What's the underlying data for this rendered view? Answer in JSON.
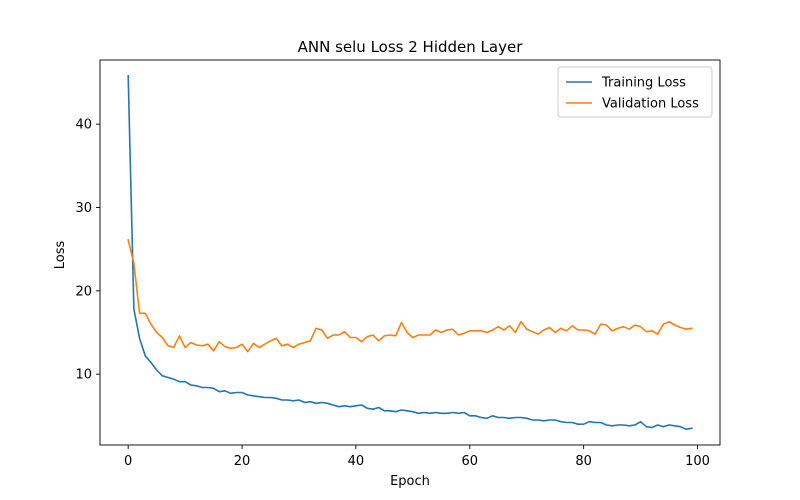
{
  "chart_data": {
    "type": "line",
    "title": "ANN selu Loss 2 Hidden Layer",
    "xlabel": "Epoch",
    "ylabel": "Loss",
    "xlim": [
      -4.95,
      103.95
    ],
    "ylim": [
      1.5,
      47.7
    ],
    "xticks": [
      0,
      20,
      40,
      60,
      80,
      100
    ],
    "yticks": [
      10,
      20,
      30,
      40
    ],
    "grid": false,
    "legend_position": "top-right",
    "series": [
      {
        "name": "Training Loss",
        "color": "#1f77b4",
        "values": [
          45.8,
          17.8,
          14.3,
          12.2,
          11.4,
          10.5,
          9.8,
          9.6,
          9.4,
          9.1,
          9.1,
          8.7,
          8.6,
          8.4,
          8.4,
          8.3,
          7.9,
          8.0,
          7.7,
          7.8,
          7.8,
          7.5,
          7.4,
          7.3,
          7.2,
          7.2,
          7.1,
          6.9,
          6.9,
          6.8,
          6.9,
          6.6,
          6.7,
          6.5,
          6.6,
          6.5,
          6.3,
          6.1,
          6.2,
          6.1,
          6.2,
          6.3,
          5.9,
          5.8,
          6.0,
          5.6,
          5.6,
          5.5,
          5.7,
          5.6,
          5.5,
          5.3,
          5.4,
          5.3,
          5.4,
          5.3,
          5.3,
          5.4,
          5.3,
          5.4,
          5.0,
          5.0,
          4.8,
          4.7,
          5.0,
          4.8,
          4.8,
          4.7,
          4.8,
          4.8,
          4.7,
          4.5,
          4.5,
          4.4,
          4.5,
          4.5,
          4.3,
          4.2,
          4.2,
          4.0,
          4.0,
          4.3,
          4.2,
          4.2,
          3.9,
          3.8,
          3.9,
          3.9,
          3.8,
          3.9,
          4.3,
          3.7,
          3.6,
          3.9,
          3.7,
          3.9,
          3.8,
          3.7,
          3.4,
          3.5
        ]
      },
      {
        "name": "Validation Loss",
        "color": "#ff7f0e",
        "values": [
          26.1,
          23.3,
          17.3,
          17.3,
          16.0,
          15.0,
          14.4,
          13.4,
          13.2,
          14.6,
          13.2,
          13.8,
          13.5,
          13.4,
          13.6,
          12.8,
          13.9,
          13.3,
          13.1,
          13.2,
          13.6,
          12.7,
          13.7,
          13.2,
          13.6,
          14.0,
          14.3,
          13.4,
          13.6,
          13.2,
          13.6,
          13.8,
          14.0,
          15.5,
          15.3,
          14.3,
          14.7,
          14.7,
          15.1,
          14.4,
          14.4,
          13.9,
          14.5,
          14.7,
          14.0,
          14.6,
          14.7,
          14.6,
          16.2,
          15.0,
          14.4,
          14.7,
          14.7,
          14.7,
          15.3,
          15.0,
          15.3,
          15.4,
          14.7,
          14.9,
          15.2,
          15.2,
          15.2,
          15.0,
          15.3,
          15.7,
          15.3,
          15.8,
          15.0,
          16.3,
          15.4,
          15.1,
          14.8,
          15.3,
          15.6,
          15.0,
          15.5,
          15.2,
          15.8,
          15.3,
          15.3,
          15.2,
          14.8,
          16.0,
          15.9,
          15.2,
          15.5,
          15.7,
          15.4,
          15.9,
          15.7,
          15.1,
          15.2,
          14.8,
          16.0,
          16.3,
          15.9,
          15.6,
          15.4,
          15.5
        ]
      }
    ]
  }
}
